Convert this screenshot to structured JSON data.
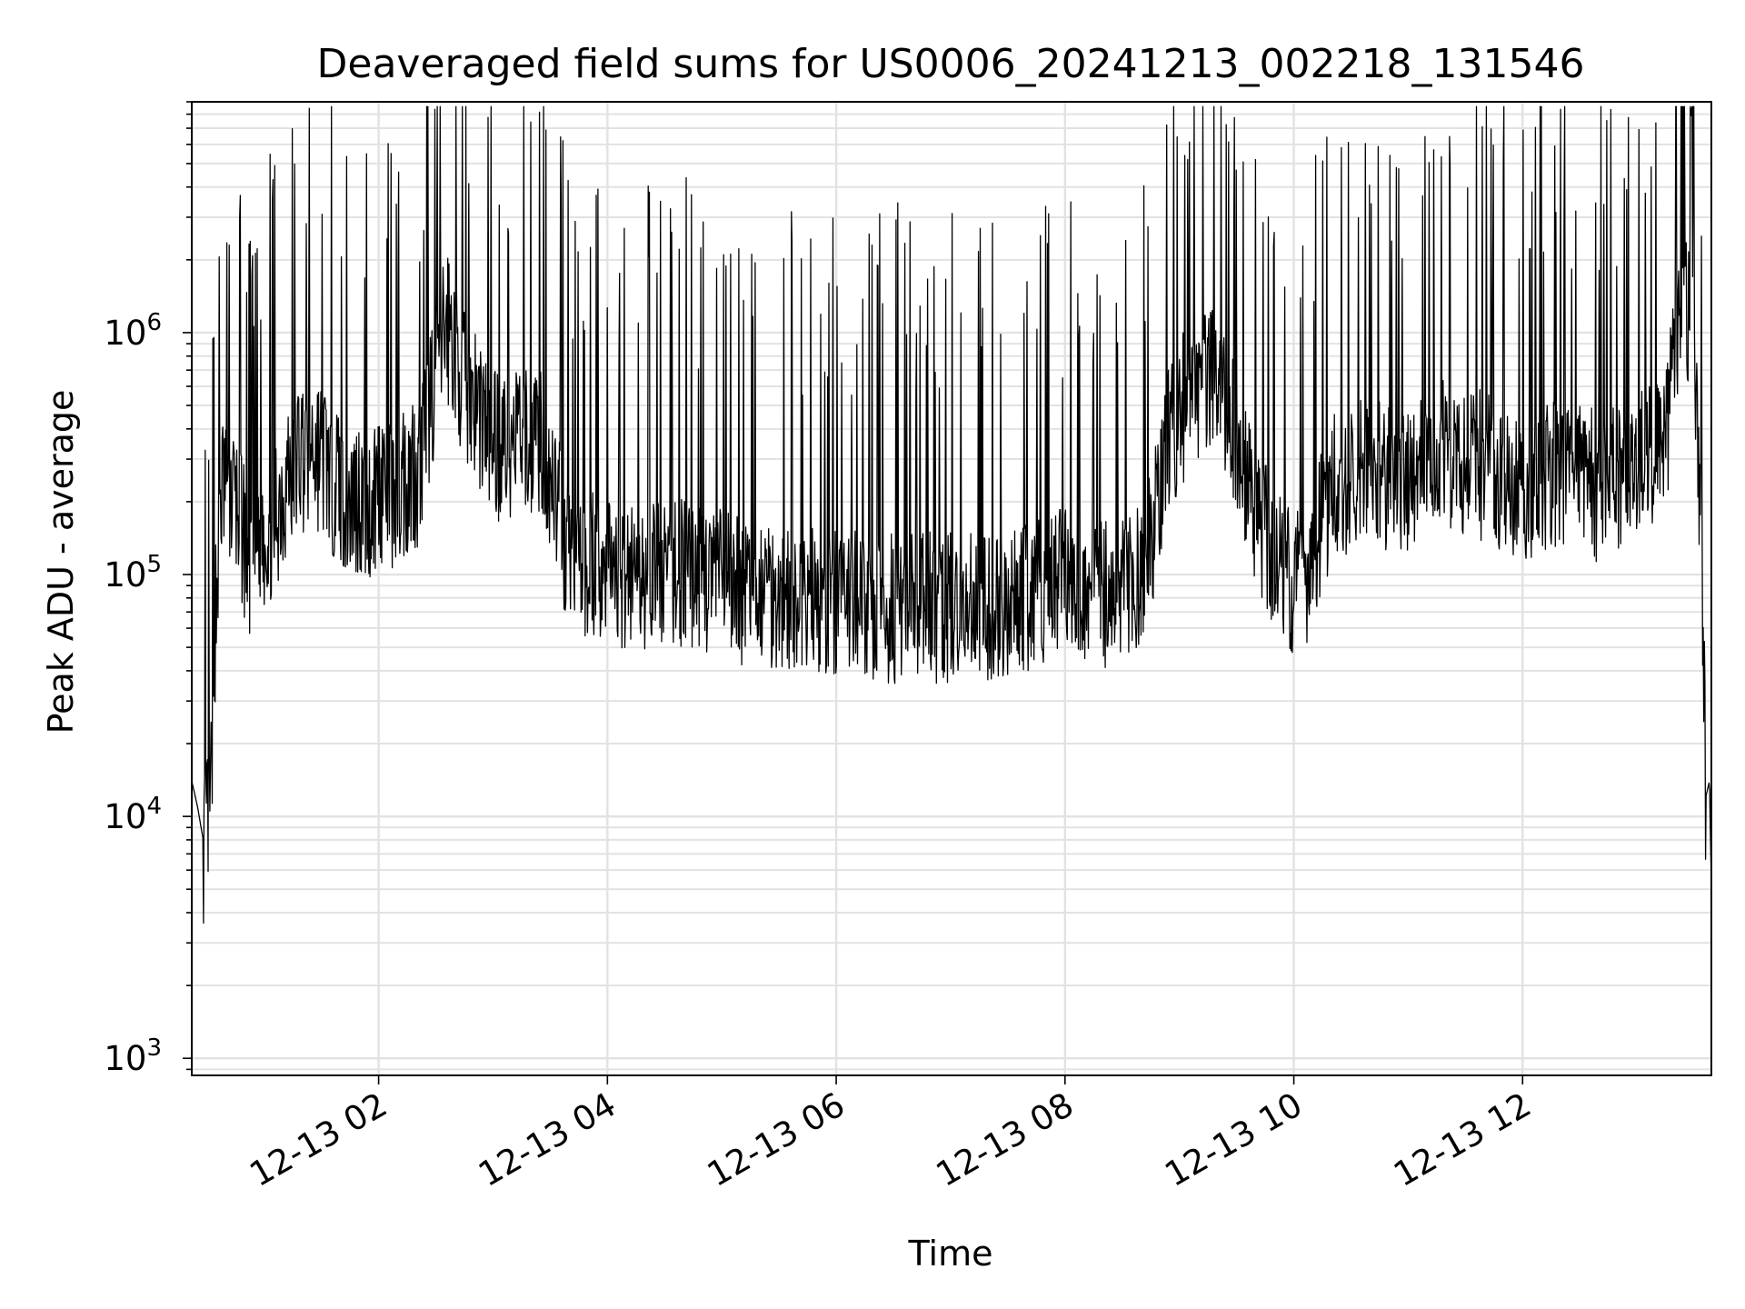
{
  "chart_data": {
    "type": "line",
    "title": "Deaveraged field sums for US0006_20241213_002218_131546",
    "xlabel": "Time",
    "ylabel": "Peak ADU - average",
    "yscale": "log",
    "xlim": [
      "2024-12-13 00:22",
      "2024-12-13 13:39"
    ],
    "ylim": [
      850,
      9000000
    ],
    "grid": true,
    "line_color": "#000000",
    "x_ticks": [
      {
        "label": "12-13 02",
        "value": "2024-12-13 02:00"
      },
      {
        "label": "12-13 04",
        "value": "2024-12-13 04:00"
      },
      {
        "label": "12-13 06",
        "value": "2024-12-13 06:00"
      },
      {
        "label": "12-13 08",
        "value": "2024-12-13 08:00"
      },
      {
        "label": "12-13 10",
        "value": "2024-12-13 10:00"
      },
      {
        "label": "12-13 12",
        "value": "2024-12-13 12:00"
      }
    ],
    "y_ticks": [
      {
        "base": "10",
        "exp": "3",
        "value": 1000
      },
      {
        "base": "10",
        "exp": "4",
        "value": 10000
      },
      {
        "base": "10",
        "exp": "5",
        "value": 100000
      },
      {
        "base": "10",
        "exp": "6",
        "value": 1000000
      }
    ],
    "series": [
      {
        "x": [
          "00:22",
          "00:25",
          "00:28",
          "00:32",
          "00:34",
          "00:37",
          "00:40",
          "00:43",
          "00:47",
          "00:52",
          "00:58",
          "01:05",
          "01:12",
          "01:18",
          "01:25",
          "01:32",
          "01:38",
          "01:45",
          "01:50",
          "01:55",
          "02:00",
          "02:08",
          "02:15",
          "02:22",
          "02:28",
          "02:32",
          "02:36",
          "02:40",
          "02:44",
          "02:48",
          "02:52",
          "02:58",
          "03:05",
          "03:15",
          "03:25",
          "03:32",
          "03:38",
          "03:45",
          "04:00",
          "04:20",
          "04:40",
          "05:00",
          "05:20",
          "05:40",
          "06:00",
          "06:20",
          "06:40",
          "07:00",
          "07:20",
          "07:40",
          "07:55",
          "08:10",
          "08:25",
          "08:40",
          "08:55",
          "09:05",
          "09:15",
          "09:25",
          "09:40",
          "09:55",
          "10:05",
          "10:20",
          "10:40",
          "11:00",
          "11:20",
          "11:40",
          "12:00",
          "12:20",
          "12:40",
          "13:00",
          "13:15",
          "13:25",
          "13:30",
          "13:34",
          "13:36",
          "13:38",
          "13:39"
        ],
        "y": [
          14000,
          11000,
          8000,
          12000,
          60000,
          200000,
          250000,
          220000,
          180000,
          120000,
          150000,
          180000,
          250000,
          320000,
          350000,
          300000,
          250000,
          200000,
          220000,
          180000,
          250000,
          220000,
          260000,
          300000,
          600000,
          900000,
          1100000,
          900000,
          700000,
          600000,
          500000,
          400000,
          350000,
          380000,
          400000,
          250000,
          150000,
          120000,
          110000,
          110000,
          110000,
          100000,
          90000,
          85000,
          80000,
          80000,
          78000,
          80000,
          82000,
          85000,
          100000,
          95000,
          90000,
          100000,
          400000,
          600000,
          700000,
          500000,
          200000,
          110000,
          100000,
          250000,
          300000,
          250000,
          350000,
          300000,
          250000,
          300000,
          250000,
          300000,
          400000,
          1800000,
          800000,
          150000,
          12000,
          14000,
          5000
        ]
      }
    ]
  }
}
